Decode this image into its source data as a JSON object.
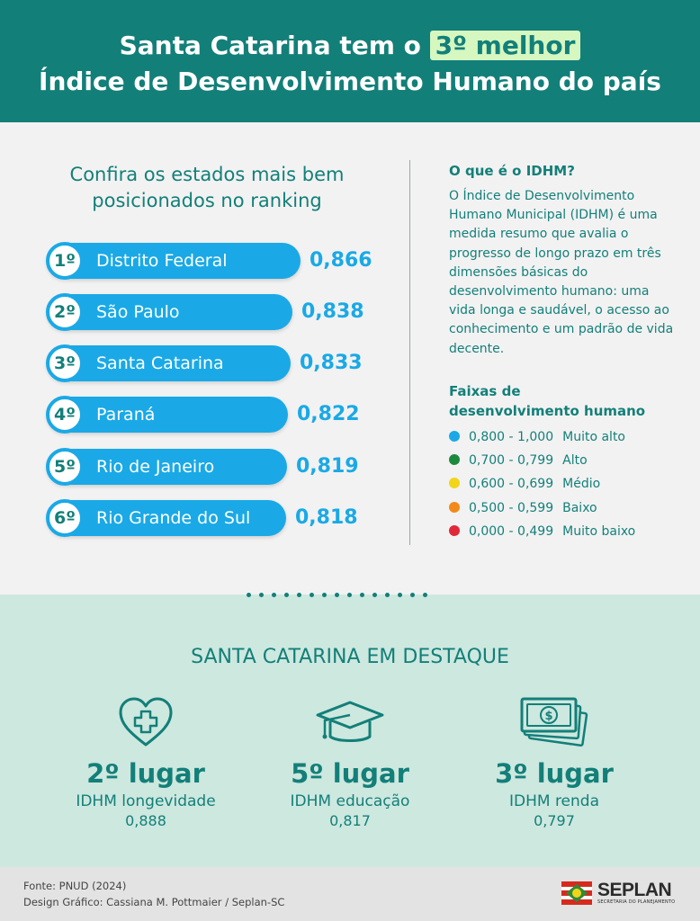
{
  "header": {
    "line1_before": "Santa Catarina tem o ",
    "line1_highlight": "3º melhor",
    "line2": "Índice de Desenvolvimento Humano do país"
  },
  "ranking": {
    "title_line1": "Confira os estados mais bem",
    "title_line2": "posicionados no ranking",
    "items": [
      {
        "pos": "1º",
        "state": "Distrito Federal",
        "value": "0,866",
        "value_num": 0.866
      },
      {
        "pos": "2º",
        "state": "São Paulo",
        "value": "0,838",
        "value_num": 0.838
      },
      {
        "pos": "3º",
        "state": "Santa Catarina",
        "value": "0,833",
        "value_num": 0.833
      },
      {
        "pos": "4º",
        "state": "Paraná",
        "value": "0,822",
        "value_num": 0.822
      },
      {
        "pos": "5º",
        "state": "Rio de Janeiro",
        "value": "0,819",
        "value_num": 0.819
      },
      {
        "pos": "6º",
        "state": "Rio Grande do Sul",
        "value": "0,818",
        "value_num": 0.818
      }
    ]
  },
  "idhm": {
    "question": "O que é o IDHM?",
    "text": "O Índice de Desenvolvimento Humano Municipal (IDHM) é uma medida resumo que avalia o progresso de longo prazo em três dimensões básicas do desenvolvimento humano: uma vida longa e saudável, o acesso ao conhecimento e um padrão de vida decente.",
    "bands_title_line1": "Faixas de",
    "bands_title_line2": "desenvolvimento humano",
    "bands": [
      {
        "range": "0,800 - 1,000",
        "label": "Muito alto",
        "color": "#1aa9e6"
      },
      {
        "range": "0,700 - 0,799",
        "label": "Alto",
        "color": "#1b8a3c"
      },
      {
        "range": "0,600 - 0,699",
        "label": "Médio",
        "color": "#f2d51a"
      },
      {
        "range": "0,500 - 0,599",
        "label": "Baixo",
        "color": "#f28a1a"
      },
      {
        "range": "0,000 - 0,499",
        "label": "Muito baixo",
        "color": "#e0283a"
      }
    ]
  },
  "highlights": {
    "title": "SANTA CATARINA EM DESTAQUE",
    "items": [
      {
        "icon": "heart-plus-icon",
        "place": "2º lugar",
        "label": "IDHM longevidade",
        "value": "0,888"
      },
      {
        "icon": "graduation-cap-icon",
        "place": "5º lugar",
        "label": "IDHM educação",
        "value": "0,817"
      },
      {
        "icon": "money-bill-icon",
        "place": "3º lugar",
        "label": "IDHM renda",
        "value": "0,797"
      }
    ]
  },
  "footer": {
    "source": "Fonte: PNUD (2024)",
    "design": "Design Gráfico: Cassiana M. Pottmaier / Seplan-SC",
    "logo_name": "SEPLAN",
    "logo_sub": "SECRETARIA DO PLANEJAMENTO"
  },
  "colors": {
    "primary": "#137f79",
    "bar": "#1aa9e6",
    "bottom_bg": "#cde8df"
  }
}
